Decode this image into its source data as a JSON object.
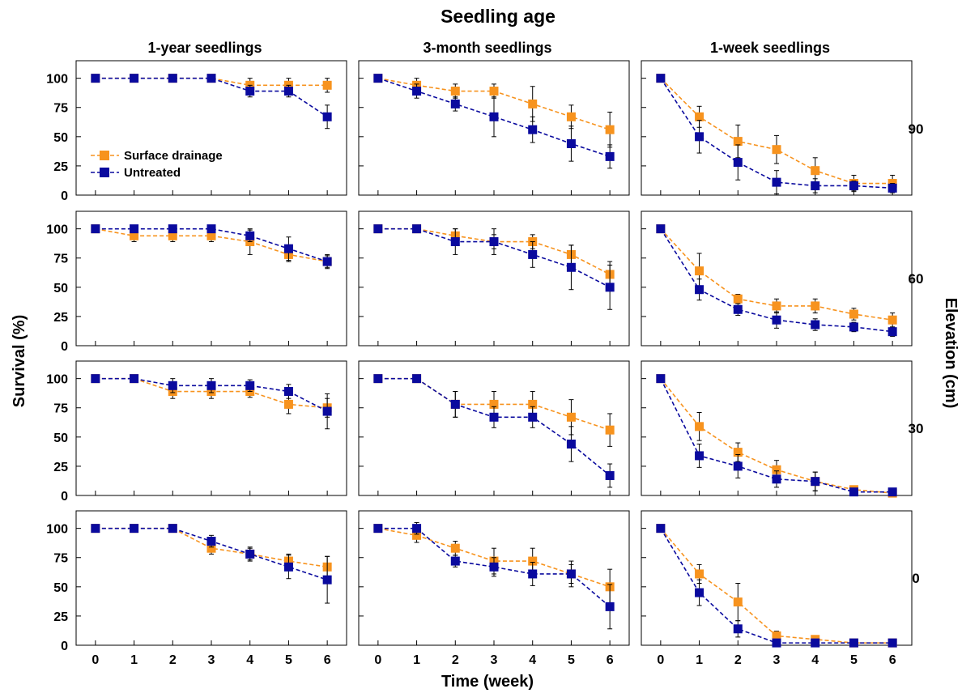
{
  "figure": {
    "title": "Seedling age",
    "x_axis_label": "Time (week)",
    "y_axis_label": "Survival (%)",
    "right_axis_label": "Elevation (cm)",
    "column_titles": [
      "1-year seedlings",
      "3-month seedlings",
      "1-week seedlings"
    ],
    "row_labels": [
      "90",
      "60",
      "30",
      "0"
    ],
    "legend": {
      "placement": "inside top-left panel, lower-left",
      "entries": [
        "Surface drainage",
        "Untreated"
      ]
    },
    "colors": {
      "surface_drainage": "#F7931E",
      "untreated": "#0A0A9E"
    }
  },
  "chart_data": [
    {
      "type": "line",
      "panel": "90 cm / 1-year seedlings",
      "x": [
        0,
        1,
        2,
        3,
        4,
        5,
        6
      ],
      "xlim": [
        -0.5,
        6.5
      ],
      "ylim": [
        0,
        115
      ],
      "xticks": [
        0,
        1,
        2,
        3,
        4,
        5,
        6
      ],
      "yticks": [
        0,
        25,
        50,
        75,
        100
      ],
      "series": [
        {
          "name": "Surface drainage",
          "values": [
            100,
            100,
            100,
            100,
            94,
            94,
            94
          ],
          "errors": [
            0,
            0,
            0,
            0,
            6,
            6,
            6
          ]
        },
        {
          "name": "Untreated",
          "values": [
            100,
            100,
            100,
            100,
            89,
            89,
            67
          ],
          "errors": [
            0,
            0,
            0,
            0,
            5,
            5,
            10
          ]
        }
      ]
    },
    {
      "type": "line",
      "panel": "90 cm / 3-month seedlings",
      "x": [
        0,
        1,
        2,
        3,
        4,
        5,
        6
      ],
      "xlim": [
        -0.5,
        6.5
      ],
      "ylim": [
        0,
        115
      ],
      "xticks": [
        0,
        1,
        2,
        3,
        4,
        5,
        6
      ],
      "yticks": [
        0,
        25,
        50,
        75,
        100
      ],
      "series": [
        {
          "name": "Surface drainage",
          "values": [
            100,
            94,
            89,
            89,
            78,
            67,
            56
          ],
          "errors": [
            0,
            6,
            6,
            6,
            15,
            10,
            15
          ]
        },
        {
          "name": "Untreated",
          "values": [
            100,
            89,
            78,
            67,
            56,
            44,
            33
          ],
          "errors": [
            0,
            6,
            6,
            17,
            11,
            15,
            10
          ]
        }
      ]
    },
    {
      "type": "line",
      "panel": "90 cm / 1-week seedlings",
      "x": [
        0,
        1,
        2,
        3,
        4,
        5,
        6
      ],
      "xlim": [
        -0.5,
        6.5
      ],
      "ylim": [
        0,
        115
      ],
      "xticks": [
        0,
        1,
        2,
        3,
        4,
        5,
        6
      ],
      "yticks": [
        0,
        25,
        50,
        75,
        100
      ],
      "series": [
        {
          "name": "Surface drainage",
          "values": [
            100,
            67,
            46,
            39,
            21,
            10,
            10
          ],
          "errors": [
            0,
            9,
            14,
            12,
            11,
            7,
            7
          ]
        },
        {
          "name": "Untreated",
          "values": [
            100,
            50,
            28,
            11,
            8,
            8,
            6
          ],
          "errors": [
            0,
            14,
            15,
            10,
            6,
            4,
            4
          ]
        }
      ]
    },
    {
      "type": "line",
      "panel": "60 cm / 1-year seedlings",
      "x": [
        0,
        1,
        2,
        3,
        4,
        5,
        6
      ],
      "xlim": [
        -0.5,
        6.5
      ],
      "ylim": [
        0,
        115
      ],
      "xticks": [
        0,
        1,
        2,
        3,
        4,
        5,
        6
      ],
      "yticks": [
        0,
        25,
        50,
        75,
        100
      ],
      "series": [
        {
          "name": "Surface drainage",
          "values": [
            100,
            94,
            94,
            94,
            89,
            78,
            72
          ],
          "errors": [
            0,
            5,
            5,
            5,
            11,
            6,
            6
          ]
        },
        {
          "name": "Untreated",
          "values": [
            100,
            100,
            100,
            100,
            94,
            83,
            72
          ],
          "errors": [
            0,
            0,
            0,
            0,
            5,
            10,
            5
          ]
        }
      ]
    },
    {
      "type": "line",
      "panel": "60 cm / 3-month seedlings",
      "x": [
        0,
        1,
        2,
        3,
        4,
        5,
        6
      ],
      "xlim": [
        -0.5,
        6.5
      ],
      "ylim": [
        0,
        115
      ],
      "xticks": [
        0,
        1,
        2,
        3,
        4,
        5,
        6
      ],
      "yticks": [
        0,
        25,
        50,
        75,
        100
      ],
      "series": [
        {
          "name": "Surface drainage",
          "values": [
            100,
            100,
            94,
            89,
            89,
            78,
            61
          ],
          "errors": [
            0,
            0,
            6,
            11,
            6,
            8,
            11
          ]
        },
        {
          "name": "Untreated",
          "values": [
            100,
            100,
            89,
            89,
            78,
            67,
            50
          ],
          "errors": [
            0,
            0,
            11,
            6,
            11,
            19,
            19
          ]
        }
      ]
    },
    {
      "type": "line",
      "panel": "60 cm / 1-week seedlings",
      "x": [
        0,
        1,
        2,
        3,
        4,
        5,
        6
      ],
      "xlim": [
        -0.5,
        6.5
      ],
      "ylim": [
        0,
        115
      ],
      "xticks": [
        0,
        1,
        2,
        3,
        4,
        5,
        6
      ],
      "yticks": [
        0,
        25,
        50,
        75,
        100
      ],
      "series": [
        {
          "name": "Surface drainage",
          "values": [
            100,
            64,
            40,
            34,
            34,
            27,
            22
          ],
          "errors": [
            0,
            15,
            4,
            6,
            6,
            5,
            6
          ]
        },
        {
          "name": "Untreated",
          "values": [
            100,
            48,
            31,
            22,
            18,
            16,
            12
          ],
          "errors": [
            0,
            9,
            5,
            7,
            5,
            4,
            4
          ]
        }
      ]
    },
    {
      "type": "line",
      "panel": "30 cm / 1-year seedlings",
      "x": [
        0,
        1,
        2,
        3,
        4,
        5,
        6
      ],
      "xlim": [
        -0.5,
        6.5
      ],
      "ylim": [
        0,
        115
      ],
      "xticks": [
        0,
        1,
        2,
        3,
        4,
        5,
        6
      ],
      "yticks": [
        0,
        25,
        50,
        75,
        100
      ],
      "series": [
        {
          "name": "Surface drainage",
          "values": [
            100,
            100,
            89,
            89,
            89,
            78,
            75
          ],
          "errors": [
            0,
            0,
            6,
            6,
            5,
            8,
            8
          ]
        },
        {
          "name": "Untreated",
          "values": [
            100,
            100,
            94,
            94,
            94,
            89,
            72
          ],
          "errors": [
            0,
            0,
            6,
            6,
            5,
            6,
            15
          ]
        }
      ]
    },
    {
      "type": "line",
      "panel": "30 cm / 3-month seedlings",
      "x": [
        0,
        1,
        2,
        3,
        4,
        5,
        6
      ],
      "xlim": [
        -0.5,
        6.5
      ],
      "ylim": [
        0,
        115
      ],
      "xticks": [
        0,
        1,
        2,
        3,
        4,
        5,
        6
      ],
      "yticks": [
        0,
        25,
        50,
        75,
        100
      ],
      "series": [
        {
          "name": "Surface drainage",
          "values": [
            100,
            100,
            78,
            78,
            78,
            67,
            56
          ],
          "errors": [
            0,
            0,
            11,
            11,
            11,
            15,
            14
          ]
        },
        {
          "name": "Untreated",
          "values": [
            100,
            100,
            78,
            67,
            67,
            44,
            17
          ],
          "errors": [
            0,
            0,
            11,
            9,
            9,
            15,
            10
          ]
        }
      ]
    },
    {
      "type": "line",
      "panel": "30 cm / 1-week seedlings",
      "x": [
        0,
        1,
        2,
        3,
        4,
        5,
        6
      ],
      "xlim": [
        -0.5,
        6.5
      ],
      "ylim": [
        0,
        115
      ],
      "xticks": [
        0,
        1,
        2,
        3,
        4,
        5,
        6
      ],
      "yticks": [
        0,
        25,
        50,
        75,
        100
      ],
      "series": [
        {
          "name": "Surface drainage",
          "values": [
            100,
            59,
            37,
            22,
            12,
            5,
            2
          ],
          "errors": [
            0,
            12,
            8,
            8,
            8,
            3,
            1
          ]
        },
        {
          "name": "Untreated",
          "values": [
            100,
            34,
            25,
            14,
            12,
            3,
            3
          ],
          "errors": [
            0,
            10,
            10,
            7,
            8,
            2,
            1
          ]
        }
      ]
    },
    {
      "type": "line",
      "panel": "0 cm / 1-year seedlings",
      "x": [
        0,
        1,
        2,
        3,
        4,
        5,
        6
      ],
      "xlim": [
        -0.5,
        6.5
      ],
      "ylim": [
        0,
        115
      ],
      "xticks": [
        0,
        1,
        2,
        3,
        4,
        5,
        6
      ],
      "yticks": [
        0,
        25,
        50,
        75,
        100
      ],
      "series": [
        {
          "name": "Surface drainage",
          "values": [
            100,
            100,
            100,
            83,
            78,
            72,
            67
          ],
          "errors": [
            0,
            0,
            0,
            5,
            5,
            6,
            9
          ]
        },
        {
          "name": "Untreated",
          "values": [
            100,
            100,
            100,
            89,
            78,
            67,
            56
          ],
          "errors": [
            0,
            0,
            0,
            5,
            6,
            10,
            20
          ]
        }
      ]
    },
    {
      "type": "line",
      "panel": "0 cm / 3-month seedlings",
      "x": [
        0,
        1,
        2,
        3,
        4,
        5,
        6
      ],
      "xlim": [
        -0.5,
        6.5
      ],
      "ylim": [
        0,
        115
      ],
      "xticks": [
        0,
        1,
        2,
        3,
        4,
        5,
        6
      ],
      "yticks": [
        0,
        25,
        50,
        75,
        100
      ],
      "series": [
        {
          "name": "Surface drainage",
          "values": [
            100,
            94,
            83,
            72,
            72,
            61,
            50
          ],
          "errors": [
            0,
            6,
            6,
            11,
            11,
            11,
            15
          ]
        },
        {
          "name": "Untreated",
          "values": [
            100,
            100,
            72,
            67,
            61,
            61,
            33
          ],
          "errors": [
            0,
            5,
            5,
            8,
            10,
            8,
            19
          ]
        }
      ]
    },
    {
      "type": "line",
      "panel": "0 cm / 1-week seedlings",
      "x": [
        0,
        1,
        2,
        3,
        4,
        5,
        6
      ],
      "xlim": [
        -0.5,
        6.5
      ],
      "ylim": [
        0,
        115
      ],
      "xticks": [
        0,
        1,
        2,
        3,
        4,
        5,
        6
      ],
      "yticks": [
        0,
        25,
        50,
        75,
        100
      ],
      "series": [
        {
          "name": "Surface drainage",
          "values": [
            100,
            61,
            37,
            8,
            5,
            2,
            2
          ],
          "errors": [
            0,
            8,
            16,
            4,
            3,
            1,
            1
          ]
        },
        {
          "name": "Untreated",
          "values": [
            100,
            45,
            14,
            2,
            2,
            2,
            2
          ],
          "errors": [
            0,
            11,
            7,
            1,
            1,
            1,
            1
          ]
        }
      ]
    }
  ]
}
